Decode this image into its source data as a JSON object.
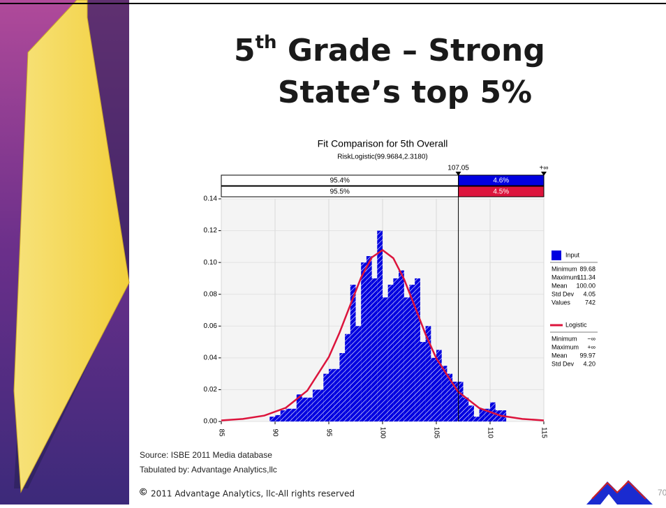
{
  "slide": {
    "title_number": "5",
    "title_sup": "th",
    "title_rest": " Grade – Strong",
    "title_line2": "State’s top 5%",
    "source": "Source: ISBE 2011 Media database",
    "tabulated": "Tabulated by: Advantage Analytics,llc",
    "copyright_symbol": "©",
    "copyright": "2011 Advantage Analytics, llc-All rights reserved",
    "page_number": "70"
  },
  "chart_data": {
    "type": "histogram",
    "title": "Fit Comparison for 5th Overall",
    "subtitle": "RiskLogistic(99.9684,2.3180)",
    "xlim": [
      85,
      115
    ],
    "xticks": [
      85,
      90,
      95,
      100,
      105,
      110,
      115
    ],
    "ylim": [
      0,
      0.14
    ],
    "yticks": [
      {
        "value": 0,
        "label": "0.00"
      },
      {
        "value": 0.02,
        "label": "0.02"
      },
      {
        "value": 0.04,
        "label": "0.04"
      },
      {
        "value": 0.06,
        "label": "0.06"
      },
      {
        "value": 0.08,
        "label": "0.08"
      },
      {
        "value": 0.1,
        "label": "0.10"
      },
      {
        "value": 0.12,
        "label": "0.12"
      },
      {
        "value": 0.14,
        "label": "0.14"
      }
    ],
    "grid": true,
    "marker": 107.05,
    "upper_label": "+∞",
    "bands": [
      {
        "left": 95.4,
        "right": 4.6,
        "left_label": "95.4%",
        "right_label": "4.6%",
        "color": "#0000e0"
      },
      {
        "left": 95.5,
        "right": 4.5,
        "left_label": "95.5%",
        "right_label": "4.5%",
        "color": "#dc143c"
      }
    ],
    "bins": [
      89.5,
      90,
      90.5,
      91,
      91.5,
      92,
      92.5,
      93,
      93.5,
      94,
      94.5,
      95,
      95.5,
      96,
      96.5,
      97,
      97.5,
      98,
      98.5,
      99,
      99.5,
      100,
      100.5,
      101,
      101.5,
      102,
      102.5,
      103,
      103.5,
      104,
      104.5,
      105,
      105.5,
      106,
      106.5,
      107,
      107.5,
      108,
      108.5,
      109,
      109.5,
      110,
      110.5,
      111,
      111.5
    ],
    "series": [
      {
        "name": "Input",
        "color": "#0000e0",
        "values": [
          0.003,
          0.004,
          0.007,
          0.008,
          0.008,
          0.017,
          0.015,
          0.015,
          0.02,
          0.02,
          0.03,
          0.033,
          0.033,
          0.043,
          0.055,
          0.086,
          0.06,
          0.1,
          0.104,
          0.09,
          0.12,
          0.078,
          0.086,
          0.09,
          0.095,
          0.078,
          0.086,
          0.09,
          0.05,
          0.06,
          0.04,
          0.045,
          0.035,
          0.03,
          0.025,
          0.025,
          0.015,
          0.01,
          0.003,
          0.008,
          0.008,
          0.012,
          0.007,
          0.007
        ],
        "stats": [
          [
            "Minimum",
            "89.68"
          ],
          [
            "Maximum",
            "111.34"
          ],
          [
            "Mean",
            "100.00"
          ],
          [
            "Std Dev",
            "4.05"
          ],
          [
            "Values",
            "742"
          ]
        ]
      },
      {
        "name": "Logistic",
        "color": "#dc143c",
        "x": [
          85,
          87,
          89,
          91,
          93,
          95,
          96,
          97,
          98,
          99,
          100,
          101,
          102,
          103,
          104,
          105,
          107,
          109,
          111,
          113,
          115
        ],
        "values": [
          0.00067,
          0.0016,
          0.0037,
          0.0086,
          0.0194,
          0.0405,
          0.0559,
          0.0733,
          0.0905,
          0.1032,
          0.1078,
          0.1027,
          0.0895,
          0.0723,
          0.0548,
          0.0397,
          0.0189,
          0.0084,
          0.0036,
          0.0016,
          0.00066
        ],
        "stats": [
          [
            "Minimum",
            "−∞"
          ],
          [
            "Maximum",
            "+∞"
          ],
          [
            "Mean",
            "99.97"
          ],
          [
            "Std Dev",
            "4.20"
          ]
        ]
      }
    ]
  }
}
